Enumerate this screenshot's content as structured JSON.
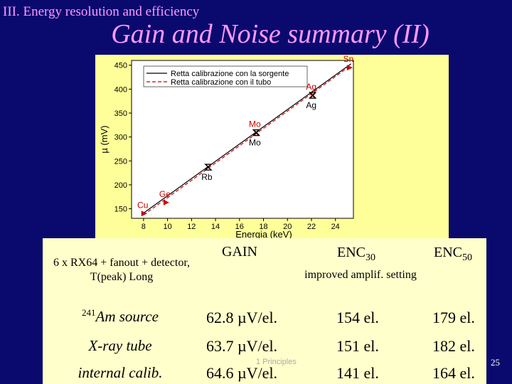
{
  "slide": {
    "section": "III. Energy resolution and efficiency",
    "title": "Gain and Noise summary (II)",
    "footer": "1 Principles",
    "page_number": "25"
  },
  "chart_data": {
    "type": "line",
    "xlabel": "Energia (keV)",
    "ylabel": "µ (mV)",
    "xlim": [
      7,
      25.5
    ],
    "ylim": [
      130,
      460
    ],
    "x_ticks": [
      8,
      10,
      12,
      14,
      16,
      18,
      20,
      22,
      24
    ],
    "y_ticks": [
      150,
      200,
      250,
      300,
      350,
      400,
      450
    ],
    "legend_position": "top-left",
    "series": [
      {
        "name": "Retta calibrazione con la sorgente",
        "color": "#000000",
        "dash": "solid",
        "x": [
          8,
          25.3
        ],
        "y": [
          141,
          453
        ]
      },
      {
        "name": "Retta calibrazione con il tubo",
        "color": "#cc0000",
        "dash": "dashed",
        "x": [
          8,
          25.3
        ],
        "y": [
          137,
          450
        ]
      }
    ],
    "points": [
      {
        "x": 8.05,
        "y": 140,
        "label": "Cu",
        "marker": "red-triangle",
        "label_pos": "above"
      },
      {
        "x": 9.9,
        "y": 163,
        "label": "Ge",
        "marker": "red-triangle",
        "label_pos": "above"
      },
      {
        "x": 13.4,
        "y": 237,
        "label": "Rb",
        "marker": "black-hourglass",
        "label_pos": "below"
      },
      {
        "x": 17.4,
        "y": 309,
        "label": "Mo",
        "marker": "red-x",
        "label_pos": "above"
      },
      {
        "x": 17.4,
        "y": 309,
        "label": "Mo",
        "marker": "black-hourglass",
        "label_pos": "below"
      },
      {
        "x": 22.1,
        "y": 387,
        "label": "Ag",
        "marker": "red-x",
        "label_pos": "above"
      },
      {
        "x": 22.1,
        "y": 387,
        "label": "Ag",
        "marker": "black-hourglass",
        "label_pos": "below"
      },
      {
        "x": 25.2,
        "y": 445,
        "label": "Sn",
        "marker": "red-triangle",
        "label_pos": "above"
      }
    ]
  },
  "table": {
    "header_label": "6 x RX64 + fanout + detector, T(peak) Long",
    "col_gain": "GAIN",
    "col_enc30": "ENC",
    "col_enc30_sub": "30",
    "col_enc30_note": "improved amplif. setting",
    "col_enc50": "ENC",
    "col_enc50_sub": "50",
    "rows": [
      {
        "label_sup": "241",
        "label": "Am source",
        "gain": "62.8 µV/el.",
        "enc30": "154 el.",
        "enc50": "179 el."
      },
      {
        "label_sup": "",
        "label": "X-ray tube",
        "gain": "63.7 µV/el.",
        "enc30": "151 el.",
        "enc50": "182 el."
      },
      {
        "label_sup": "",
        "label": "internal calib.",
        "gain": "64.6 µV/el.",
        "enc30": "141 el.",
        "enc50": "164 el."
      }
    ]
  }
}
